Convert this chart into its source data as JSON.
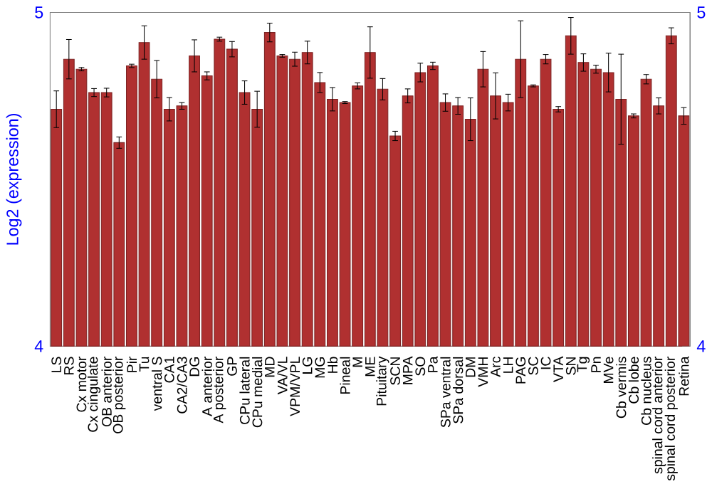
{
  "chart_data": {
    "type": "bar",
    "ylabel": "Log2 (expression)",
    "categories": [
      "LS",
      "RS",
      "Cx motor",
      "Cx cingulate",
      "OB anterior",
      "OB posterior",
      "Pir",
      "Tu",
      "ventral S",
      "CA1",
      "CA2/CA3",
      "DG",
      "A anterior",
      "A posterior",
      "GP",
      "CPu lateral",
      "CPu medial",
      "MD",
      "VA/VL",
      "VPM/VPL",
      "LG",
      "MG",
      "Hb",
      "Pineal",
      "M",
      "ME",
      "Pituitary",
      "SCN",
      "MPA",
      "SO",
      "Pa",
      "SPa ventral",
      "SPa dorsal",
      "DM",
      "VMH",
      "Arc",
      "LH",
      "PAG",
      "SC",
      "IC",
      "VTA",
      "SN",
      "Tg",
      "Pn",
      "MVe",
      "Cb vermis",
      "Cb lobe",
      "Cb nucleus",
      "spinal cord anterior",
      "spinal cord posterior",
      "Retina"
    ],
    "values": [
      4.71,
      4.86,
      4.83,
      4.76,
      4.76,
      4.61,
      4.84,
      4.91,
      4.8,
      4.71,
      4.72,
      4.87,
      4.81,
      4.92,
      4.89,
      4.76,
      4.71,
      4.94,
      4.87,
      4.86,
      4.88,
      4.79,
      4.74,
      4.73,
      4.78,
      4.88,
      4.77,
      4.63,
      4.75,
      4.82,
      4.84,
      4.73,
      4.72,
      4.68,
      4.83,
      4.75,
      4.73,
      4.86,
      4.78,
      4.86,
      4.71,
      4.93,
      4.85,
      4.83,
      4.82,
      4.74,
      4.69,
      4.8,
      4.72,
      4.93,
      4.69
    ],
    "errors": [
      0.055,
      0.059,
      0.005,
      0.012,
      0.013,
      0.017,
      0.005,
      0.05,
      0.056,
      0.035,
      0.01,
      0.048,
      0.012,
      0.006,
      0.023,
      0.035,
      0.054,
      0.028,
      0.004,
      0.021,
      0.034,
      0.03,
      0.035,
      0.003,
      0.009,
      0.077,
      0.032,
      0.014,
      0.021,
      0.028,
      0.011,
      0.026,
      0.025,
      0.064,
      0.053,
      0.069,
      0.025,
      0.115,
      0.003,
      0.014,
      0.008,
      0.055,
      0.026,
      0.012,
      0.058,
      0.135,
      0.006,
      0.014,
      0.024,
      0.024,
      0.025
    ],
    "color": "#b03030",
    "ylim": [
      4,
      5
    ],
    "yticks": [
      4,
      5
    ],
    "y2lim": [
      4,
      5
    ],
    "y2ticks": [
      4,
      5
    ],
    "grid": false
  }
}
